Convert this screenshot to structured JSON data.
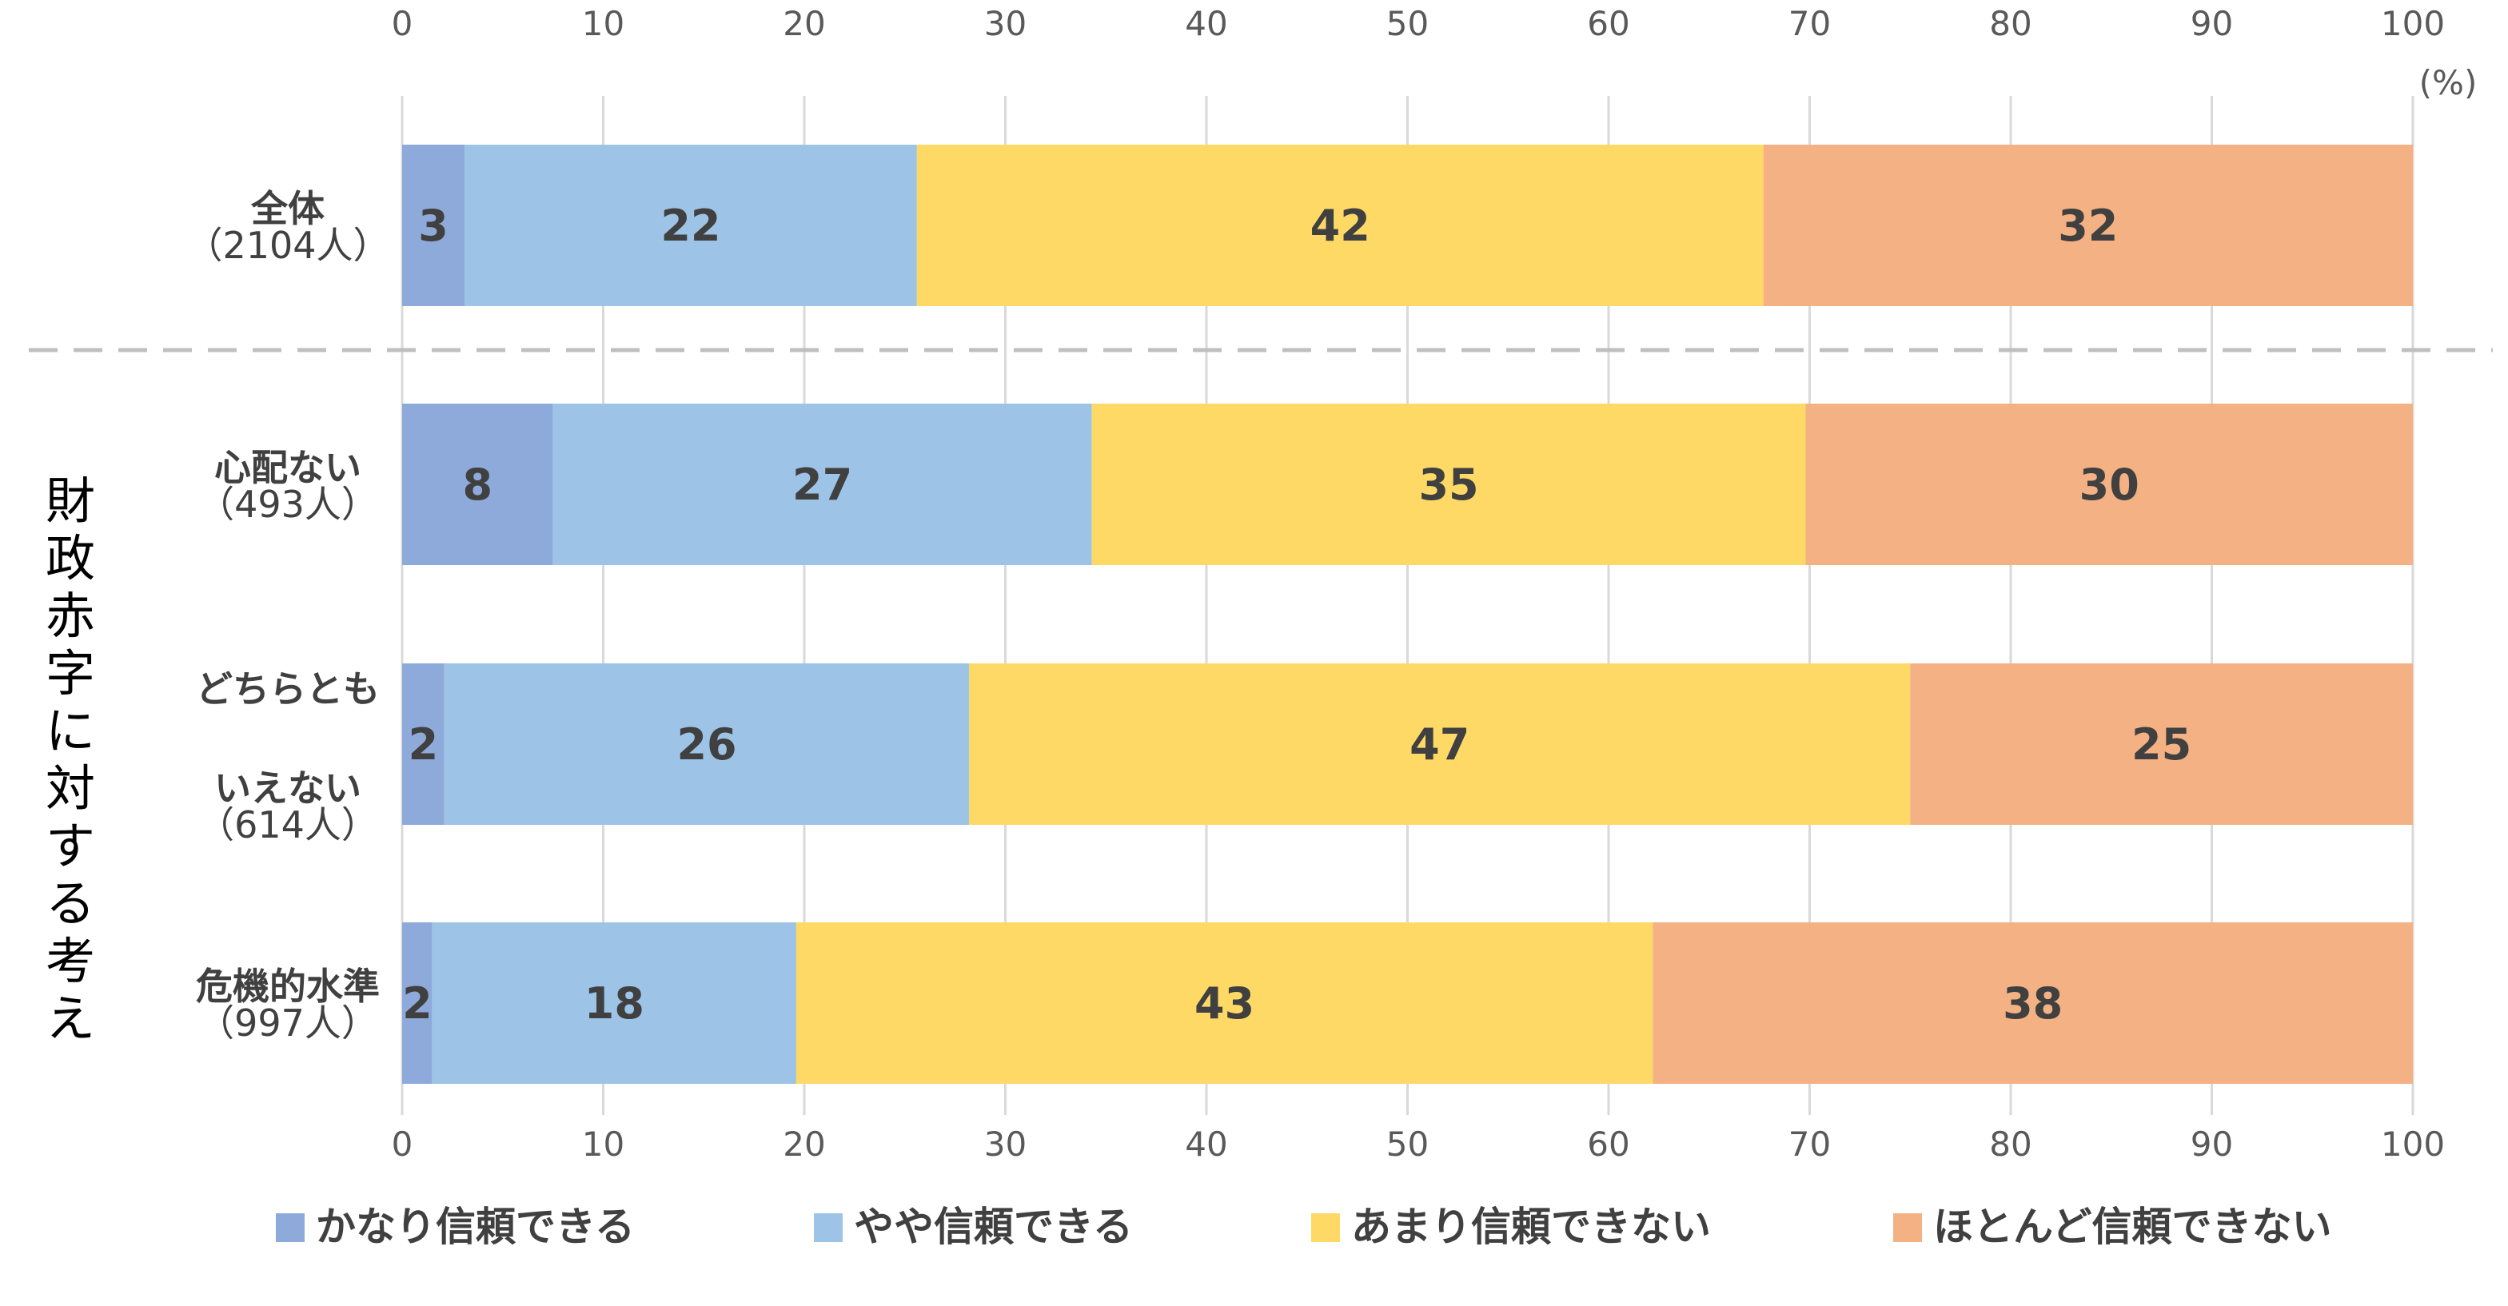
{
  "chart_data": {
    "type": "bar",
    "orientation": "horizontal",
    "stacked": true,
    "xlim": [
      0,
      100
    ],
    "x_ticks": [
      "0",
      "10",
      "20",
      "30",
      "40",
      "50",
      "60",
      "70",
      "80",
      "90",
      "100"
    ],
    "unit_label": "(%)",
    "group_label": "財政赤字に対する考え",
    "categories": [
      {
        "lines": [
          "全体"
        ],
        "count": "（2104人）"
      },
      {
        "lines": [
          "心配ない"
        ],
        "count": "（493人）"
      },
      {
        "lines": [
          "どちらとも",
          "いえない"
        ],
        "count": "（614人）"
      },
      {
        "lines": [
          "危機的水準"
        ],
        "count": "（997人）"
      }
    ],
    "series": [
      {
        "name": "かなり信頼できる",
        "color": "#8eaadb",
        "values": [
          3.1,
          7.5,
          2.1,
          1.5
        ],
        "labels": [
          "3",
          "8",
          "2",
          "2"
        ]
      },
      {
        "name": "やや信頼できる",
        "color": "#9dc3e6",
        "values": [
          22.5,
          26.8,
          26.1,
          18.1
        ],
        "labels": [
          "22",
          "27",
          "26",
          "18"
        ]
      },
      {
        "name": "あまり信頼できない",
        "color": "#ffd966",
        "values": [
          42.1,
          35.5,
          46.8,
          42.6
        ],
        "labels": [
          "42",
          "35",
          "47",
          "43"
        ]
      },
      {
        "name": "ほとんど信頼できない",
        "color": "#f4b183",
        "values": [
          32.3,
          30.2,
          25.0,
          37.8
        ],
        "labels": [
          "32",
          "30",
          "25",
          "38"
        ]
      }
    ],
    "grid": true,
    "legend_position": "bottom"
  }
}
